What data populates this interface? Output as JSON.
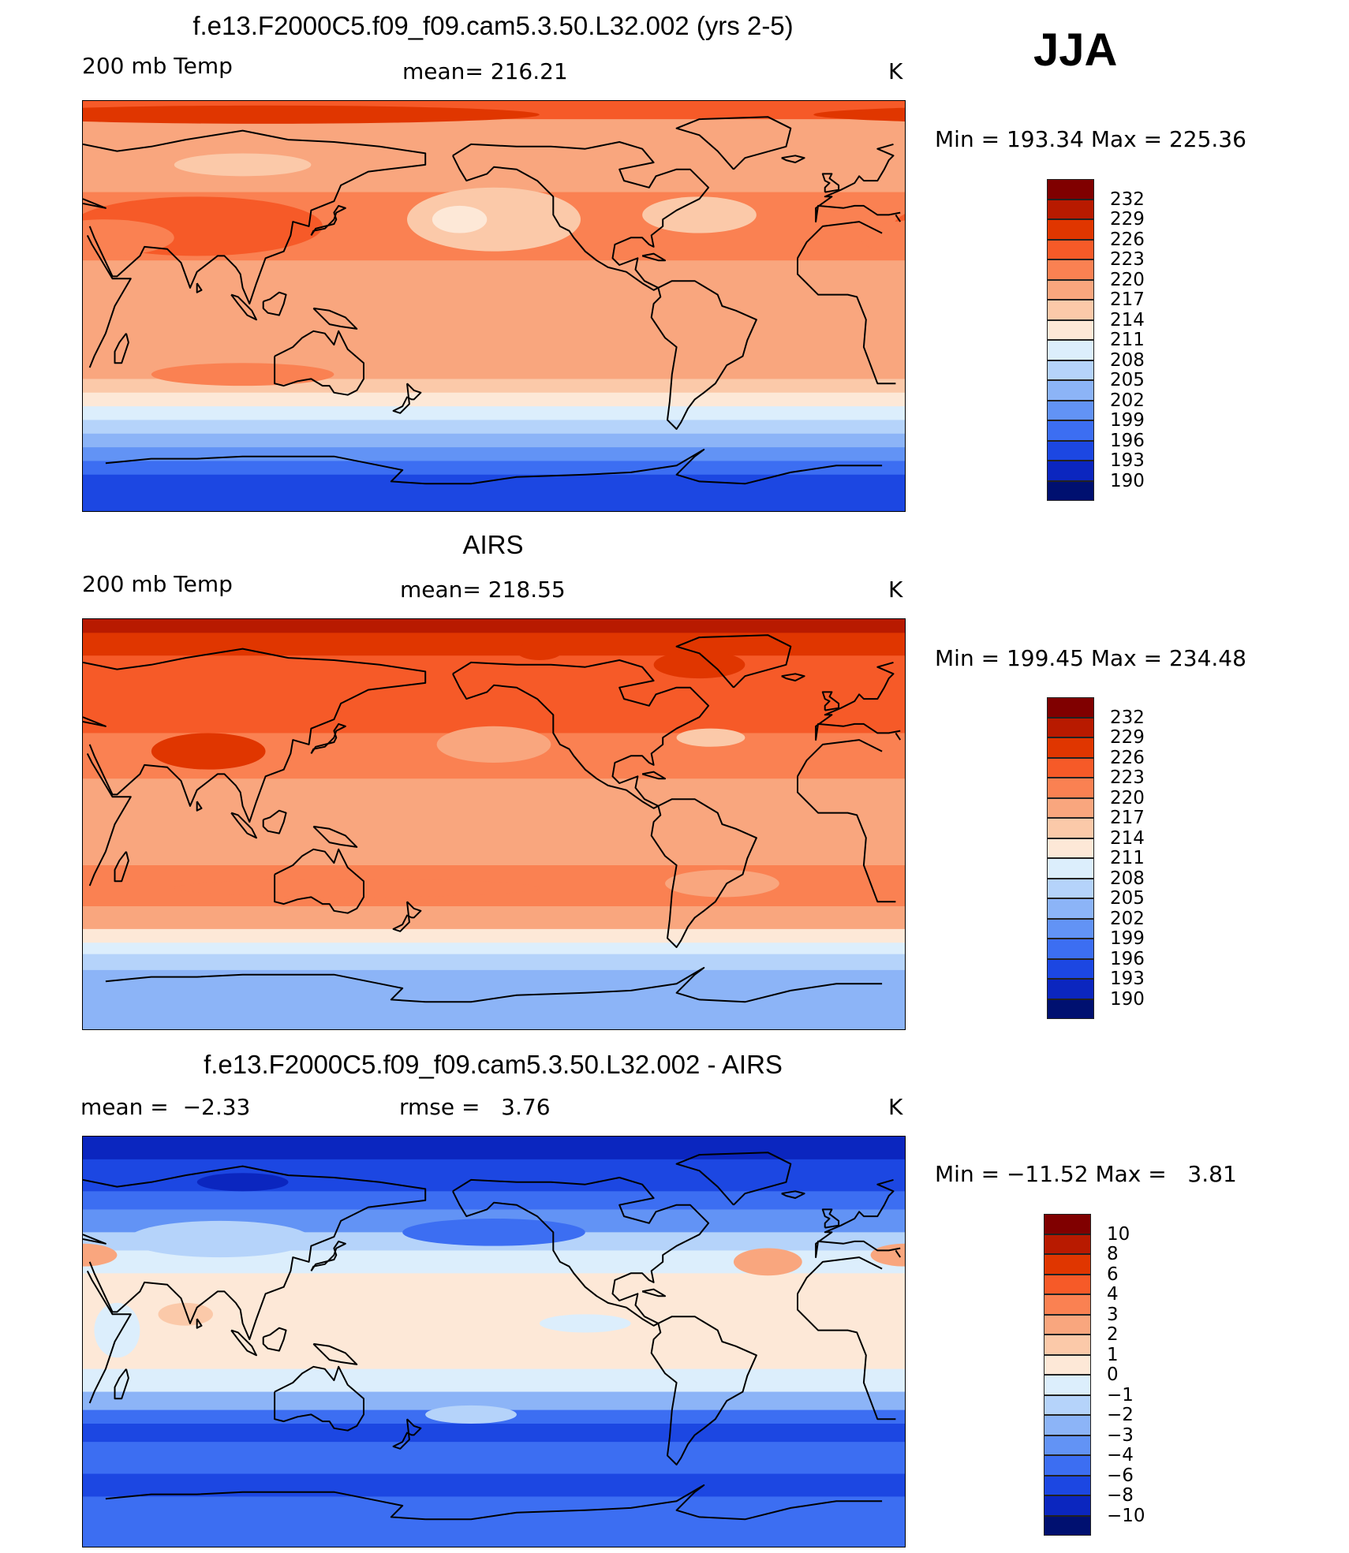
{
  "season": "JJA",
  "panels": [
    {
      "id": "model",
      "title": "f.e13.F2000C5.f09_f09.cam5.3.50.L32.002 (yrs 2-5)",
      "left_label": "200 mb Temp",
      "center_label": "mean= 216.21",
      "unit": "K",
      "minmax": "Min = 193.34 Max = 225.36",
      "map_label": "200 mb temperature, model",
      "colorbar": {
        "ticks": [
          "232",
          "229",
          "226",
          "223",
          "220",
          "217",
          "214",
          "211",
          "208",
          "205",
          "202",
          "199",
          "196",
          "193",
          "190"
        ],
        "colors": [
          "#800000",
          "#b81a00",
          "#e03600",
          "#f65a28",
          "#fa8152",
          "#f9a67e",
          "#fbc9a9",
          "#fde8d7",
          "#dceefc",
          "#b5d3fa",
          "#8cb4f7",
          "#6293f5",
          "#3c6ef2",
          "#1c47e2",
          "#0b26bf",
          "#001070"
        ]
      },
      "field": {
        "bands": [
          {
            "from": 90,
            "to": 82,
            "value": 223
          },
          {
            "from": 82,
            "to": 70,
            "value": 219
          },
          {
            "from": 70,
            "to": 50,
            "value": 218
          },
          {
            "from": 50,
            "to": 20,
            "value": 220
          },
          {
            "from": 20,
            "to": -20,
            "value": 218
          },
          {
            "from": -20,
            "to": -32,
            "value": 217
          },
          {
            "from": -32,
            "to": -38,
            "value": 215
          },
          {
            "from": -38,
            "to": -44,
            "value": 212
          },
          {
            "from": -44,
            "to": -50,
            "value": 209
          },
          {
            "from": -50,
            "to": -56,
            "value": 206
          },
          {
            "from": -56,
            "to": -62,
            "value": 203
          },
          {
            "from": -62,
            "to": -68,
            "value": 200
          },
          {
            "from": -68,
            "to": -74,
            "value": 197
          },
          {
            "from": -74,
            "to": -90,
            "value": 194
          }
        ],
        "patches": [
          {
            "lon": 80,
            "lat": 35,
            "rx": 55,
            "ry": 13,
            "value": 225
          },
          {
            "lon": 40,
            "lat": 30,
            "rx": 30,
            "ry": 8,
            "value": 222
          },
          {
            "lon": -150,
            "lat": 38,
            "rx": 38,
            "ry": 14,
            "value": 215
          },
          {
            "lon": -165,
            "lat": 38,
            "rx": 12,
            "ry": 6,
            "value": 213
          },
          {
            "lon": 100,
            "lat": 62,
            "rx": 30,
            "ry": 5,
            "value": 215
          },
          {
            "lon": -60,
            "lat": 40,
            "rx": 25,
            "ry": 8,
            "value": 216
          },
          {
            "lon": 100,
            "lat": -30,
            "rx": 40,
            "ry": 5,
            "value": 221
          },
          {
            "lon": 110,
            "lat": 84,
            "rx": 120,
            "ry": 4,
            "value": 226
          }
        ]
      }
    },
    {
      "id": "obs",
      "title": "AIRS",
      "left_label": "200 mb Temp",
      "center_label": "mean= 218.55",
      "unit": "K",
      "minmax": "Min = 199.45 Max = 234.48",
      "map_label": "200 mb temperature, AIRS",
      "colorbar": {
        "ticks": [
          "232",
          "229",
          "226",
          "223",
          "220",
          "217",
          "214",
          "211",
          "208",
          "205",
          "202",
          "199",
          "196",
          "193",
          "190"
        ],
        "colors": [
          "#800000",
          "#b81a00",
          "#e03600",
          "#f65a28",
          "#fa8152",
          "#f9a67e",
          "#fbc9a9",
          "#fde8d7",
          "#dceefc",
          "#b5d3fa",
          "#8cb4f7",
          "#6293f5",
          "#3c6ef2",
          "#1c47e2",
          "#0b26bf",
          "#001070"
        ]
      },
      "field": {
        "bands": [
          {
            "from": 90,
            "to": 84,
            "value": 230
          },
          {
            "from": 84,
            "to": 74,
            "value": 227
          },
          {
            "from": 74,
            "to": 60,
            "value": 225
          },
          {
            "from": 60,
            "to": 40,
            "value": 224
          },
          {
            "from": 40,
            "to": 20,
            "value": 222
          },
          {
            "from": 20,
            "to": -18,
            "value": 219
          },
          {
            "from": -18,
            "to": -36,
            "value": 221
          },
          {
            "from": -36,
            "to": -46,
            "value": 217
          },
          {
            "from": -46,
            "to": -52,
            "value": 213
          },
          {
            "from": -52,
            "to": -57,
            "value": 210
          },
          {
            "from": -57,
            "to": -64,
            "value": 207
          },
          {
            "from": -64,
            "to": -90,
            "value": 204
          }
        ],
        "patches": [
          {
            "lon": 85,
            "lat": 32,
            "rx": 25,
            "ry": 8,
            "value": 227
          },
          {
            "lon": -150,
            "lat": 35,
            "rx": 25,
            "ry": 8,
            "value": 217
          },
          {
            "lon": -55,
            "lat": 38,
            "rx": 15,
            "ry": 4,
            "value": 214
          },
          {
            "lon": -60,
            "lat": 70,
            "rx": 20,
            "ry": 6,
            "value": 227
          },
          {
            "lon": -130,
            "lat": 76,
            "rx": 10,
            "ry": 4,
            "value": 228
          },
          {
            "lon": 150,
            "lat": -28,
            "rx": 80,
            "ry": 4,
            "value": 222
          },
          {
            "lon": -50,
            "lat": -26,
            "rx": 25,
            "ry": 6,
            "value": 218
          }
        ]
      }
    },
    {
      "id": "diff",
      "title": "f.e13.F2000C5.f09_f09.cam5.3.50.L32.002 - AIRS",
      "left_label": "mean =  −2.33",
      "center_label": "rmse =   3.76",
      "unit": "K",
      "minmax": "Min = −11.52 Max =   3.81",
      "map_label": "200 mb temperature difference, model minus AIRS",
      "colorbar": {
        "ticks": [
          "10",
          "8",
          "6",
          "4",
          "3",
          "2",
          "1",
          "0",
          "−1",
          "−2",
          "−3",
          "−4",
          "−6",
          "−8",
          "−10"
        ],
        "colors": [
          "#800000",
          "#b81a00",
          "#e03600",
          "#f65a28",
          "#fa8152",
          "#f9a67e",
          "#fbc9a9",
          "#fde8d7",
          "#dceefc",
          "#b5d3fa",
          "#8cb4f7",
          "#6293f5",
          "#3c6ef2",
          "#1c47e2",
          "#0b26bf",
          "#001070"
        ]
      },
      "field": {
        "bands": [
          {
            "from": 90,
            "to": 80,
            "value": -9
          },
          {
            "from": 80,
            "to": 66,
            "value": -7
          },
          {
            "from": 66,
            "to": 58,
            "value": -5
          },
          {
            "from": 58,
            "to": 48,
            "value": -3.5
          },
          {
            "from": 48,
            "to": 40,
            "value": -1.5
          },
          {
            "from": 40,
            "to": 30,
            "value": -0.5
          },
          {
            "from": 30,
            "to": -12,
            "value": 0.5
          },
          {
            "from": -12,
            "to": -22,
            "value": -0.5
          },
          {
            "from": -22,
            "to": -30,
            "value": -2.5
          },
          {
            "from": -30,
            "to": -36,
            "value": -4.5
          },
          {
            "from": -36,
            "to": -44,
            "value": -7
          },
          {
            "from": -44,
            "to": -58,
            "value": -5
          },
          {
            "from": -58,
            "to": -68,
            "value": -7
          },
          {
            "from": -68,
            "to": -90,
            "value": -5
          }
        ],
        "patches": [
          {
            "lon": 90,
            "lat": 45,
            "rx": 40,
            "ry": 8,
            "value": -1.5
          },
          {
            "lon": -150,
            "lat": 48,
            "rx": 40,
            "ry": 6,
            "value": -5
          },
          {
            "lon": 100,
            "lat": 70,
            "rx": 20,
            "ry": 4,
            "value": -9
          },
          {
            "lon": -30,
            "lat": 35,
            "rx": 15,
            "ry": 6,
            "value": 2.5
          },
          {
            "lon": 30,
            "lat": 38,
            "rx": 15,
            "ry": 5,
            "value": 2.5
          },
          {
            "lon": 75,
            "lat": 12,
            "rx": 12,
            "ry": 5,
            "value": 1.5
          },
          {
            "lon": -110,
            "lat": 8,
            "rx": 20,
            "ry": 4,
            "value": -0.5
          },
          {
            "lon": 45,
            "lat": 5,
            "rx": 10,
            "ry": 12,
            "value": -0.5
          },
          {
            "lon": -160,
            "lat": -32,
            "rx": 20,
            "ry": 4,
            "value": -1.5
          }
        ]
      }
    }
  ]
}
